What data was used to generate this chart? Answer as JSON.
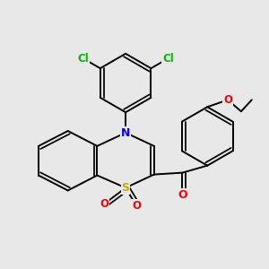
{
  "background_color": "#e8e8e8",
  "bond_color": "#000000",
  "bond_width": 1.4,
  "atom_colors": {
    "Cl": "#00bb00",
    "N": "#0000ff",
    "S": "#ccaa00",
    "O": "#ff0000",
    "C": "#000000"
  },
  "font_size_atom": 9.0,
  "font_size_small": 7.5
}
